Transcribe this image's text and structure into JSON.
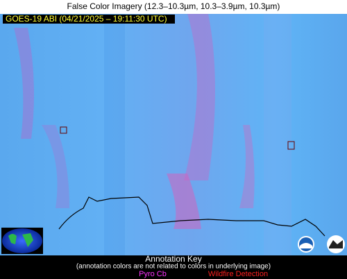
{
  "header": {
    "title": "False Color Imagery (12.3–10.3µm, 10.3–3.9µm, 10.3µm)",
    "label": "GOES-19 ABI (04/21/2025 – 19:11:30 UTC)"
  },
  "key": {
    "title": "Annotation Key",
    "note": "(annotation colors are not related to colors in underlying image)",
    "items": [
      "Pyro Cb",
      "Wildfire Detection"
    ]
  }
}
